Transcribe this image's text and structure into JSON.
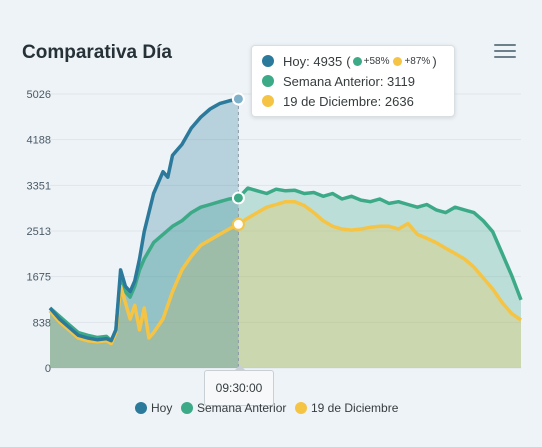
{
  "title": "Comparativa Día",
  "menu_icon": "hamburger-menu-icon",
  "colors": {
    "hoy": "#2c7a9b",
    "semana": "#3daa87",
    "diciembre": "#f5c444",
    "grid": "#dfe5ea"
  },
  "tooltip": {
    "hoy_label": "Hoy: 4935",
    "hoy_open": "(",
    "hoy_pct_semana": "+58%",
    "hoy_pct_dic": "+87%",
    "hoy_close": ")",
    "semana_label": "Semana Anterior: 3119",
    "diciembre_label": "19 de Diciembre: 2636"
  },
  "crosshair_label": "09:30:00",
  "legend": [
    {
      "name": "Hoy"
    },
    {
      "name": "Semana Anterior"
    },
    {
      "name": "19 de Diciembre"
    }
  ],
  "chart_data": {
    "type": "area",
    "title": "Comparativa Día",
    "yticks": [
      "0",
      "838",
      "1675",
      "2513",
      "3351",
      "4188",
      "5026"
    ],
    "ylim": [
      0,
      5026
    ],
    "x_range": [
      0,
      100
    ],
    "crosshair_x": 40,
    "series": [
      {
        "name": "Hoy",
        "x": [
          0,
          2,
          4,
          6,
          8,
          10,
          12,
          13,
          14,
          15,
          16,
          17,
          18,
          19,
          20,
          22,
          24,
          25,
          26,
          27,
          28,
          30,
          32,
          34,
          35,
          36,
          38,
          40
        ],
        "values": [
          1100,
          900,
          750,
          600,
          550,
          520,
          540,
          500,
          700,
          1800,
          1500,
          1400,
          1600,
          2000,
          2500,
          3200,
          3600,
          3500,
          3900,
          4000,
          4100,
          4400,
          4600,
          4750,
          4800,
          4850,
          4900,
          4935
        ]
      },
      {
        "name": "Semana Anterior",
        "x": [
          0,
          2,
          4,
          6,
          8,
          10,
          12,
          13,
          14,
          15,
          16,
          17,
          18,
          19,
          20,
          22,
          24,
          26,
          28,
          30,
          32,
          34,
          36,
          38,
          40,
          42,
          44,
          46,
          48,
          50,
          52,
          54,
          56,
          58,
          60,
          62,
          64,
          66,
          68,
          70,
          72,
          74,
          76,
          78,
          80,
          82,
          84,
          86,
          88,
          90,
          92,
          94,
          96,
          98,
          100
        ],
        "values": [
          1100,
          950,
          800,
          650,
          600,
          560,
          580,
          500,
          700,
          1700,
          1400,
          1300,
          1500,
          1800,
          2000,
          2300,
          2450,
          2600,
          2700,
          2850,
          2950,
          3000,
          3050,
          3100,
          3119,
          3300,
          3250,
          3200,
          3280,
          3250,
          3260,
          3200,
          3220,
          3150,
          3200,
          3100,
          3150,
          3080,
          3050,
          3100,
          3020,
          3050,
          3000,
          2950,
          3000,
          2900,
          2850,
          2950,
          2900,
          2850,
          2700,
          2500,
          2100,
          1700,
          1250
        ]
      },
      {
        "name": "19 de Diciembre",
        "x": [
          0,
          2,
          4,
          6,
          8,
          10,
          12,
          13,
          14,
          15,
          16,
          17,
          18,
          19,
          20,
          21,
          22,
          24,
          26,
          28,
          30,
          32,
          34,
          36,
          38,
          40,
          42,
          44,
          46,
          48,
          50,
          52,
          54,
          56,
          58,
          60,
          62,
          64,
          66,
          68,
          70,
          72,
          74,
          76,
          78,
          80,
          82,
          84,
          86,
          88,
          90,
          92,
          94,
          96,
          98,
          100
        ],
        "values": [
          1050,
          850,
          700,
          550,
          500,
          480,
          500,
          450,
          650,
          1500,
          1200,
          900,
          1150,
          700,
          1100,
          550,
          650,
          900,
          1400,
          1800,
          2050,
          2250,
          2350,
          2450,
          2550,
          2636,
          2750,
          2850,
          2950,
          3000,
          3050,
          3050,
          2980,
          2850,
          2700,
          2600,
          2550,
          2530,
          2550,
          2580,
          2600,
          2600,
          2550,
          2650,
          2450,
          2380,
          2300,
          2200,
          2100,
          2000,
          1850,
          1650,
          1450,
          1200,
          1000,
          880
        ]
      }
    ]
  }
}
